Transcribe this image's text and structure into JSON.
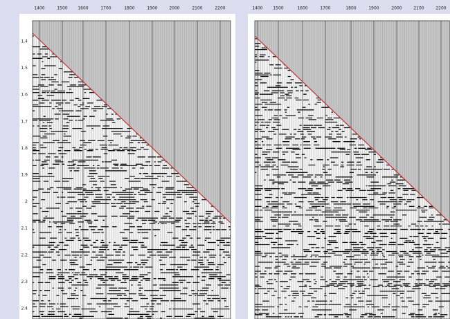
{
  "panels": [
    {
      "x_labels": [
        "1400",
        "1500",
        "1600",
        "1700",
        "1800",
        "1900",
        "2000",
        "2100",
        "2200"
      ],
      "y_labels": [
        "1.4",
        "1.5",
        "1.6",
        "1.7",
        "1.8",
        "1.9",
        "2",
        "2.1",
        "2.2",
        "2.3",
        "2.4"
      ]
    },
    {
      "x_labels": [
        "1400",
        "1500",
        "1600",
        "1700",
        "1800",
        "1900",
        "2000",
        "2100",
        "2200"
      ]
    }
  ]
}
